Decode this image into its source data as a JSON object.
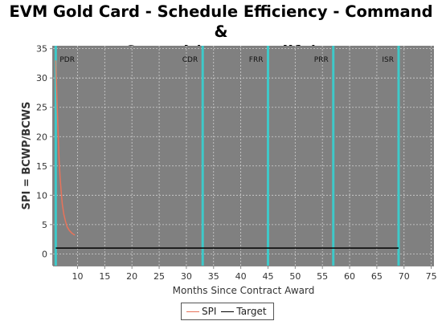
{
  "title_line1": "EVM Gold Card - Schedule Efficiency - Command &",
  "title_line2": "Control (program life)",
  "chart_data": {
    "type": "line",
    "title": "EVM Gold Card - Schedule Efficiency - Command & Control (program life)",
    "xlabel": "Months Since Contract Award",
    "ylabel": "SPI = BCWP/BCWS",
    "xlim": [
      5.5,
      75.5
    ],
    "ylim": [
      -2,
      35.5
    ],
    "x_ticks": [
      10,
      15,
      20,
      25,
      30,
      35,
      40,
      45,
      50,
      55,
      60,
      65,
      70,
      75
    ],
    "y_ticks": [
      0,
      5,
      10,
      15,
      20,
      25,
      30,
      35
    ],
    "grid": true,
    "legend_position": "bottom",
    "background_color": "#808080",
    "series": [
      {
        "name": "SPI",
        "color": "#e8735a",
        "x": [
          6.0,
          6.2,
          6.4,
          6.6,
          6.8,
          7.0,
          7.2,
          7.5,
          7.8,
          8.1,
          8.5,
          9.0,
          9.5
        ],
        "y": [
          33,
          27,
          21.5,
          16.5,
          13,
          10.5,
          8.5,
          6.7,
          5.5,
          4.6,
          4.0,
          3.5,
          3.2
        ]
      },
      {
        "name": "Target",
        "color": "#000000",
        "x": [
          6,
          69
        ],
        "y": [
          1,
          1
        ]
      }
    ],
    "milestones": [
      {
        "label": "PDR",
        "x": 6.0
      },
      {
        "label": "CDR",
        "x": 33.0
      },
      {
        "label": "FRR",
        "x": 45.0
      },
      {
        "label": "PRR",
        "x": 57.0
      },
      {
        "label": "ISR",
        "x": 69.0
      }
    ],
    "milestone_color": "#3ec9c9"
  }
}
